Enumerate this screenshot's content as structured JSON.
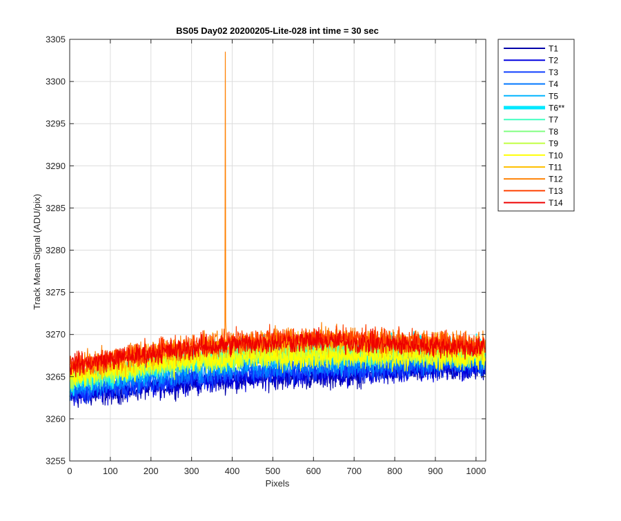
{
  "chart_data": {
    "type": "line",
    "title": "BS05 Day02 20200205-Lite-028 int time = 30 sec",
    "xlabel": "Pixels",
    "ylabel": "Track Mean Signal (ADU/pix)",
    "xlim": [
      0,
      1024
    ],
    "ylim": [
      3255,
      3305
    ],
    "xticks": [
      "0",
      "100",
      "200",
      "300",
      "400",
      "500",
      "600",
      "700",
      "800",
      "900",
      "1000"
    ],
    "yticks": [
      "3255",
      "3260",
      "3265",
      "3270",
      "3275",
      "3280",
      "3285",
      "3290",
      "3295",
      "3300",
      "3305"
    ],
    "grid": true,
    "legend_position": "outside-top-right",
    "x_points": 1024,
    "series": [
      {
        "name": "T1",
        "color": "#0000a8",
        "baseline_start": 3262.5,
        "baseline_mid": 3265.0,
        "baseline_end": 3266.0,
        "noise_amplitude": 1.3
      },
      {
        "name": "T2",
        "color": "#0000e0",
        "baseline_start": 3262.8,
        "baseline_mid": 3265.2,
        "baseline_end": 3266.2,
        "noise_amplitude": 1.3
      },
      {
        "name": "T3",
        "color": "#0f3fff",
        "baseline_start": 3263.0,
        "baseline_mid": 3265.6,
        "baseline_end": 3266.5,
        "noise_amplitude": 1.2
      },
      {
        "name": "T4",
        "color": "#0078ff",
        "baseline_start": 3263.5,
        "baseline_mid": 3266.2,
        "baseline_end": 3266.8,
        "noise_amplitude": 1.2
      },
      {
        "name": "T5",
        "color": "#00b4ff",
        "baseline_start": 3264.0,
        "baseline_mid": 3267.0,
        "baseline_end": 3267.2,
        "noise_amplitude": 1.2
      },
      {
        "name": "T6**",
        "color": "#00e8ff",
        "baseline_start": 3264.5,
        "baseline_mid": 3268.5,
        "baseline_end": 3268.2,
        "noise_amplitude": 1.4,
        "highlighted": true
      },
      {
        "name": "T7",
        "color": "#40ffc0",
        "baseline_start": 3264.5,
        "baseline_mid": 3268.0,
        "baseline_end": 3268.0,
        "noise_amplitude": 1.3
      },
      {
        "name": "T8",
        "color": "#80ff80",
        "baseline_start": 3264.8,
        "baseline_mid": 3267.8,
        "baseline_end": 3267.8,
        "noise_amplitude": 1.3
      },
      {
        "name": "T9",
        "color": "#c0ff40",
        "baseline_start": 3265.0,
        "baseline_mid": 3267.6,
        "baseline_end": 3267.5,
        "noise_amplitude": 1.3
      },
      {
        "name": "T10",
        "color": "#ffff00",
        "baseline_start": 3265.2,
        "baseline_mid": 3267.4,
        "baseline_end": 3267.2,
        "noise_amplitude": 1.3
      },
      {
        "name": "T11",
        "color": "#ffc000",
        "baseline_start": 3265.8,
        "baseline_mid": 3269.0,
        "baseline_end": 3268.5,
        "noise_amplitude": 1.3
      },
      {
        "name": "T12",
        "color": "#ff8000",
        "baseline_start": 3266.2,
        "baseline_mid": 3269.6,
        "baseline_end": 3268.8,
        "noise_amplitude": 1.3,
        "spike_x": 383,
        "spike_y": 3303.5
      },
      {
        "name": "T13",
        "color": "#ff4000",
        "baseline_start": 3266.5,
        "baseline_mid": 3269.6,
        "baseline_end": 3268.8,
        "noise_amplitude": 1.3
      },
      {
        "name": "T14",
        "color": "#ee0000",
        "baseline_start": 3266.3,
        "baseline_mid": 3269.2,
        "baseline_end": 3268.4,
        "noise_amplitude": 1.2
      }
    ]
  }
}
